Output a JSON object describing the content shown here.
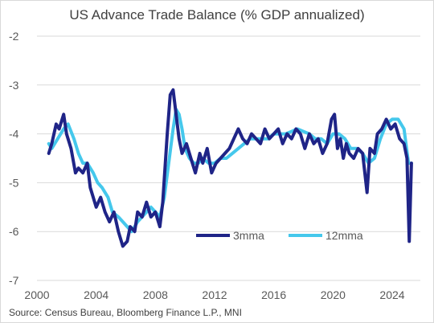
{
  "chart_data": {
    "type": "line",
    "title": "US Advance Trade Balance (% GDP annualized)",
    "source": "Source: Census Bureau, Bloomberg Finance L.P., MNI",
    "xlabel": "",
    "ylabel": "",
    "xlim": [
      2000,
      2025.9
    ],
    "ylim": [
      -7,
      -2
    ],
    "x_ticks": [
      "2000",
      "2004",
      "2008",
      "2012",
      "2016",
      "2020",
      "2024"
    ],
    "y_ticks": [
      "-2",
      "-3",
      "-4",
      "-5",
      "-6",
      "-7"
    ],
    "grid": "horizontal",
    "legend_position": "lower-right",
    "colors": {
      "3mma": "#1f2487",
      "12mma": "#45c8ec",
      "grid": "#d9d9d9",
      "axis_text": "#595959"
    },
    "series": [
      {
        "name": "3mma",
        "x": [
          2000.8,
          2001.0,
          2001.3,
          2001.5,
          2001.8,
          2002.0,
          2002.3,
          2002.6,
          2002.8,
          2003.1,
          2003.4,
          2003.6,
          2004.0,
          2004.3,
          2004.6,
          2004.9,
          2005.2,
          2005.5,
          2005.8,
          2006.1,
          2006.3,
          2006.6,
          2006.8,
          2007.1,
          2007.4,
          2007.7,
          2008.0,
          2008.3,
          2008.5,
          2008.8,
          2009.0,
          2009.2,
          2009.4,
          2009.6,
          2009.8,
          2010.1,
          2010.4,
          2010.7,
          2011.0,
          2011.2,
          2011.5,
          2011.8,
          2012.1,
          2012.4,
          2012.7,
          2013.0,
          2013.3,
          2013.6,
          2013.9,
          2014.2,
          2014.5,
          2014.8,
          2015.1,
          2015.4,
          2015.7,
          2016.0,
          2016.3,
          2016.6,
          2016.9,
          2017.2,
          2017.5,
          2017.8,
          2018.1,
          2018.4,
          2018.7,
          2019.0,
          2019.3,
          2019.6,
          2019.9,
          2020.1,
          2020.3,
          2020.5,
          2020.7,
          2020.9,
          2021.1,
          2021.4,
          2021.7,
          2022.0,
          2022.3,
          2022.5,
          2022.8,
          2023.0,
          2023.3,
          2023.6,
          2023.9,
          2024.2,
          2024.5,
          2024.8,
          2025.0,
          2025.15,
          2025.3
        ],
        "values": [
          -4.4,
          -4.2,
          -3.8,
          -3.9,
          -3.6,
          -4.0,
          -4.3,
          -4.8,
          -4.7,
          -4.8,
          -4.6,
          -5.1,
          -5.5,
          -5.3,
          -5.6,
          -5.8,
          -5.6,
          -6.0,
          -6.3,
          -6.2,
          -5.9,
          -6.0,
          -5.6,
          -5.7,
          -5.4,
          -5.7,
          -5.6,
          -5.9,
          -5.4,
          -4.0,
          -3.2,
          -3.1,
          -3.6,
          -4.1,
          -4.4,
          -4.2,
          -4.5,
          -4.8,
          -4.4,
          -4.6,
          -4.3,
          -4.8,
          -4.6,
          -4.5,
          -4.4,
          -4.3,
          -4.1,
          -3.9,
          -4.1,
          -4.2,
          -4.0,
          -4.1,
          -4.2,
          -3.9,
          -4.1,
          -4.0,
          -3.9,
          -4.2,
          -4.0,
          -4.1,
          -3.9,
          -4.0,
          -4.3,
          -4.0,
          -4.2,
          -4.1,
          -4.4,
          -4.2,
          -3.7,
          -3.6,
          -4.3,
          -4.1,
          -4.5,
          -4.2,
          -4.4,
          -4.5,
          -4.3,
          -4.4,
          -5.2,
          -4.3,
          -4.4,
          -4.0,
          -3.9,
          -3.7,
          -3.9,
          -3.8,
          -4.1,
          -4.2,
          -4.5,
          -6.2,
          -4.6
        ],
        "color": "#1f2487"
      },
      {
        "name": "12mma",
        "x": [
          2000.8,
          2001.0,
          2001.4,
          2001.8,
          2002.1,
          2002.5,
          2002.8,
          2003.1,
          2003.4,
          2003.8,
          2004.1,
          2004.4,
          2004.8,
          2005.1,
          2005.5,
          2005.8,
          2006.1,
          2006.4,
          2006.8,
          2007.1,
          2007.4,
          2007.7,
          2008.0,
          2008.3,
          2008.6,
          2008.9,
          2009.2,
          2009.4,
          2009.6,
          2009.8,
          2010.0,
          2010.3,
          2010.6,
          2010.9,
          2011.2,
          2011.6,
          2012.0,
          2012.4,
          2012.8,
          2013.2,
          2013.6,
          2014.0,
          2014.4,
          2014.8,
          2015.2,
          2015.6,
          2016.0,
          2016.4,
          2016.8,
          2017.2,
          2017.6,
          2018.0,
          2018.4,
          2018.8,
          2019.2,
          2019.6,
          2020.0,
          2020.4,
          2020.8,
          2021.2,
          2021.6,
          2022.0,
          2022.4,
          2022.8,
          2023.2,
          2023.6,
          2024.0,
          2024.4,
          2024.8,
          2025.1,
          2025.3
        ],
        "values": [
          -4.2,
          -4.3,
          -4.1,
          -3.9,
          -3.8,
          -4.1,
          -4.4,
          -4.6,
          -4.6,
          -4.8,
          -5.0,
          -5.1,
          -5.3,
          -5.6,
          -5.7,
          -5.8,
          -5.9,
          -6.0,
          -5.8,
          -5.7,
          -5.6,
          -5.5,
          -5.6,
          -5.7,
          -5.3,
          -4.6,
          -3.9,
          -3.5,
          -3.6,
          -3.9,
          -4.3,
          -4.5,
          -4.6,
          -4.6,
          -4.5,
          -4.6,
          -4.6,
          -4.5,
          -4.5,
          -4.4,
          -4.3,
          -4.2,
          -4.1,
          -4.1,
          -4.1,
          -4.1,
          -4.0,
          -4.0,
          -4.0,
          -3.95,
          -3.9,
          -3.95,
          -4.0,
          -4.1,
          -4.1,
          -4.2,
          -4.0,
          -4.0,
          -4.1,
          -4.3,
          -4.3,
          -4.4,
          -4.6,
          -4.5,
          -4.1,
          -3.8,
          -3.7,
          -3.7,
          -3.9,
          -4.6,
          -4.6
        ],
        "color": "#45c8ec"
      }
    ]
  }
}
